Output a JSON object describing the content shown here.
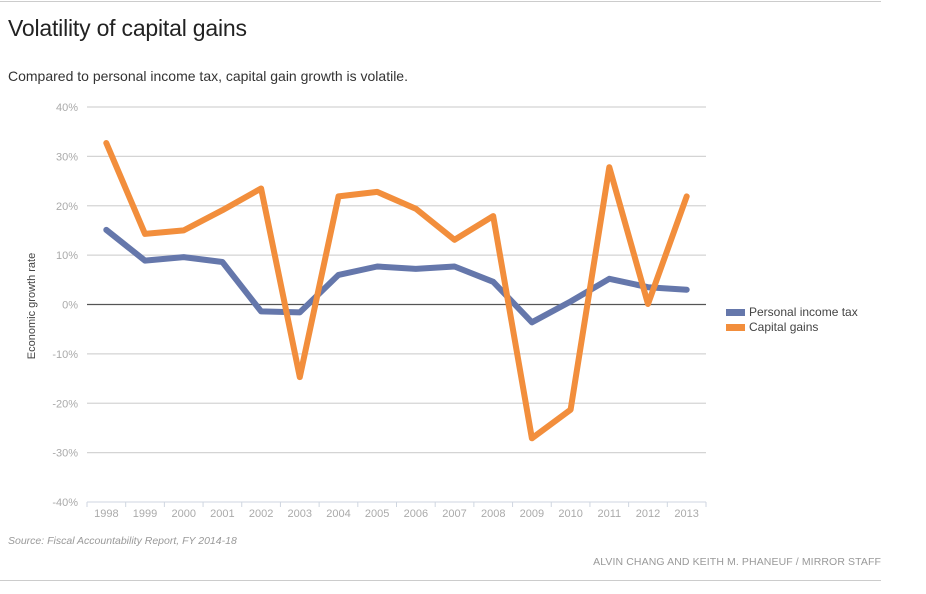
{
  "header": {
    "title": "Volatility of capital gains",
    "subtitle": "Compared to personal income tax, capital gain growth is volatile."
  },
  "footer": {
    "source": "Source: Fiscal Accountability Report, FY 2014-18",
    "credit": "ALVIN CHANG AND KEITH M. PHANEUF / MIRROR STAFF"
  },
  "chart_data": {
    "type": "line",
    "title": "Volatility of capital gains",
    "subtitle": "Compared to personal income tax, capital gain growth is volatile.",
    "xlabel": "",
    "ylabel": "Economic growth rate",
    "categories": [
      "1998",
      "1999",
      "2000",
      "2001",
      "2002",
      "2003",
      "2004",
      "2005",
      "2006",
      "2007",
      "2008",
      "2009",
      "2010",
      "2011",
      "2012",
      "2013"
    ],
    "ylim": [
      -40,
      40
    ],
    "yticks": [
      40,
      30,
      20,
      10,
      0,
      -10,
      -20,
      -30,
      -40
    ],
    "ytick_labels": [
      "40%",
      "30%",
      "20%",
      "10%",
      "0%",
      "-10%",
      "-20%",
      "-30%",
      "-40%"
    ],
    "grid": true,
    "legend_position": "right",
    "series": [
      {
        "name": "Personal income tax",
        "color": "#6577ab",
        "values": [
          15.1,
          8.9,
          9.6,
          8.6,
          -1.4,
          -1.6,
          6.0,
          7.7,
          7.2,
          7.7,
          4.6,
          -3.6,
          0.6,
          5.2,
          3.5,
          3.0
        ]
      },
      {
        "name": "Capital gains",
        "color": "#f28e3c",
        "values": [
          32.7,
          14.3,
          15.0,
          19.1,
          23.5,
          -14.7,
          21.9,
          22.8,
          19.4,
          13.1,
          17.9,
          -27.1,
          -21.3,
          27.8,
          0.1,
          21.9
        ]
      }
    ]
  }
}
